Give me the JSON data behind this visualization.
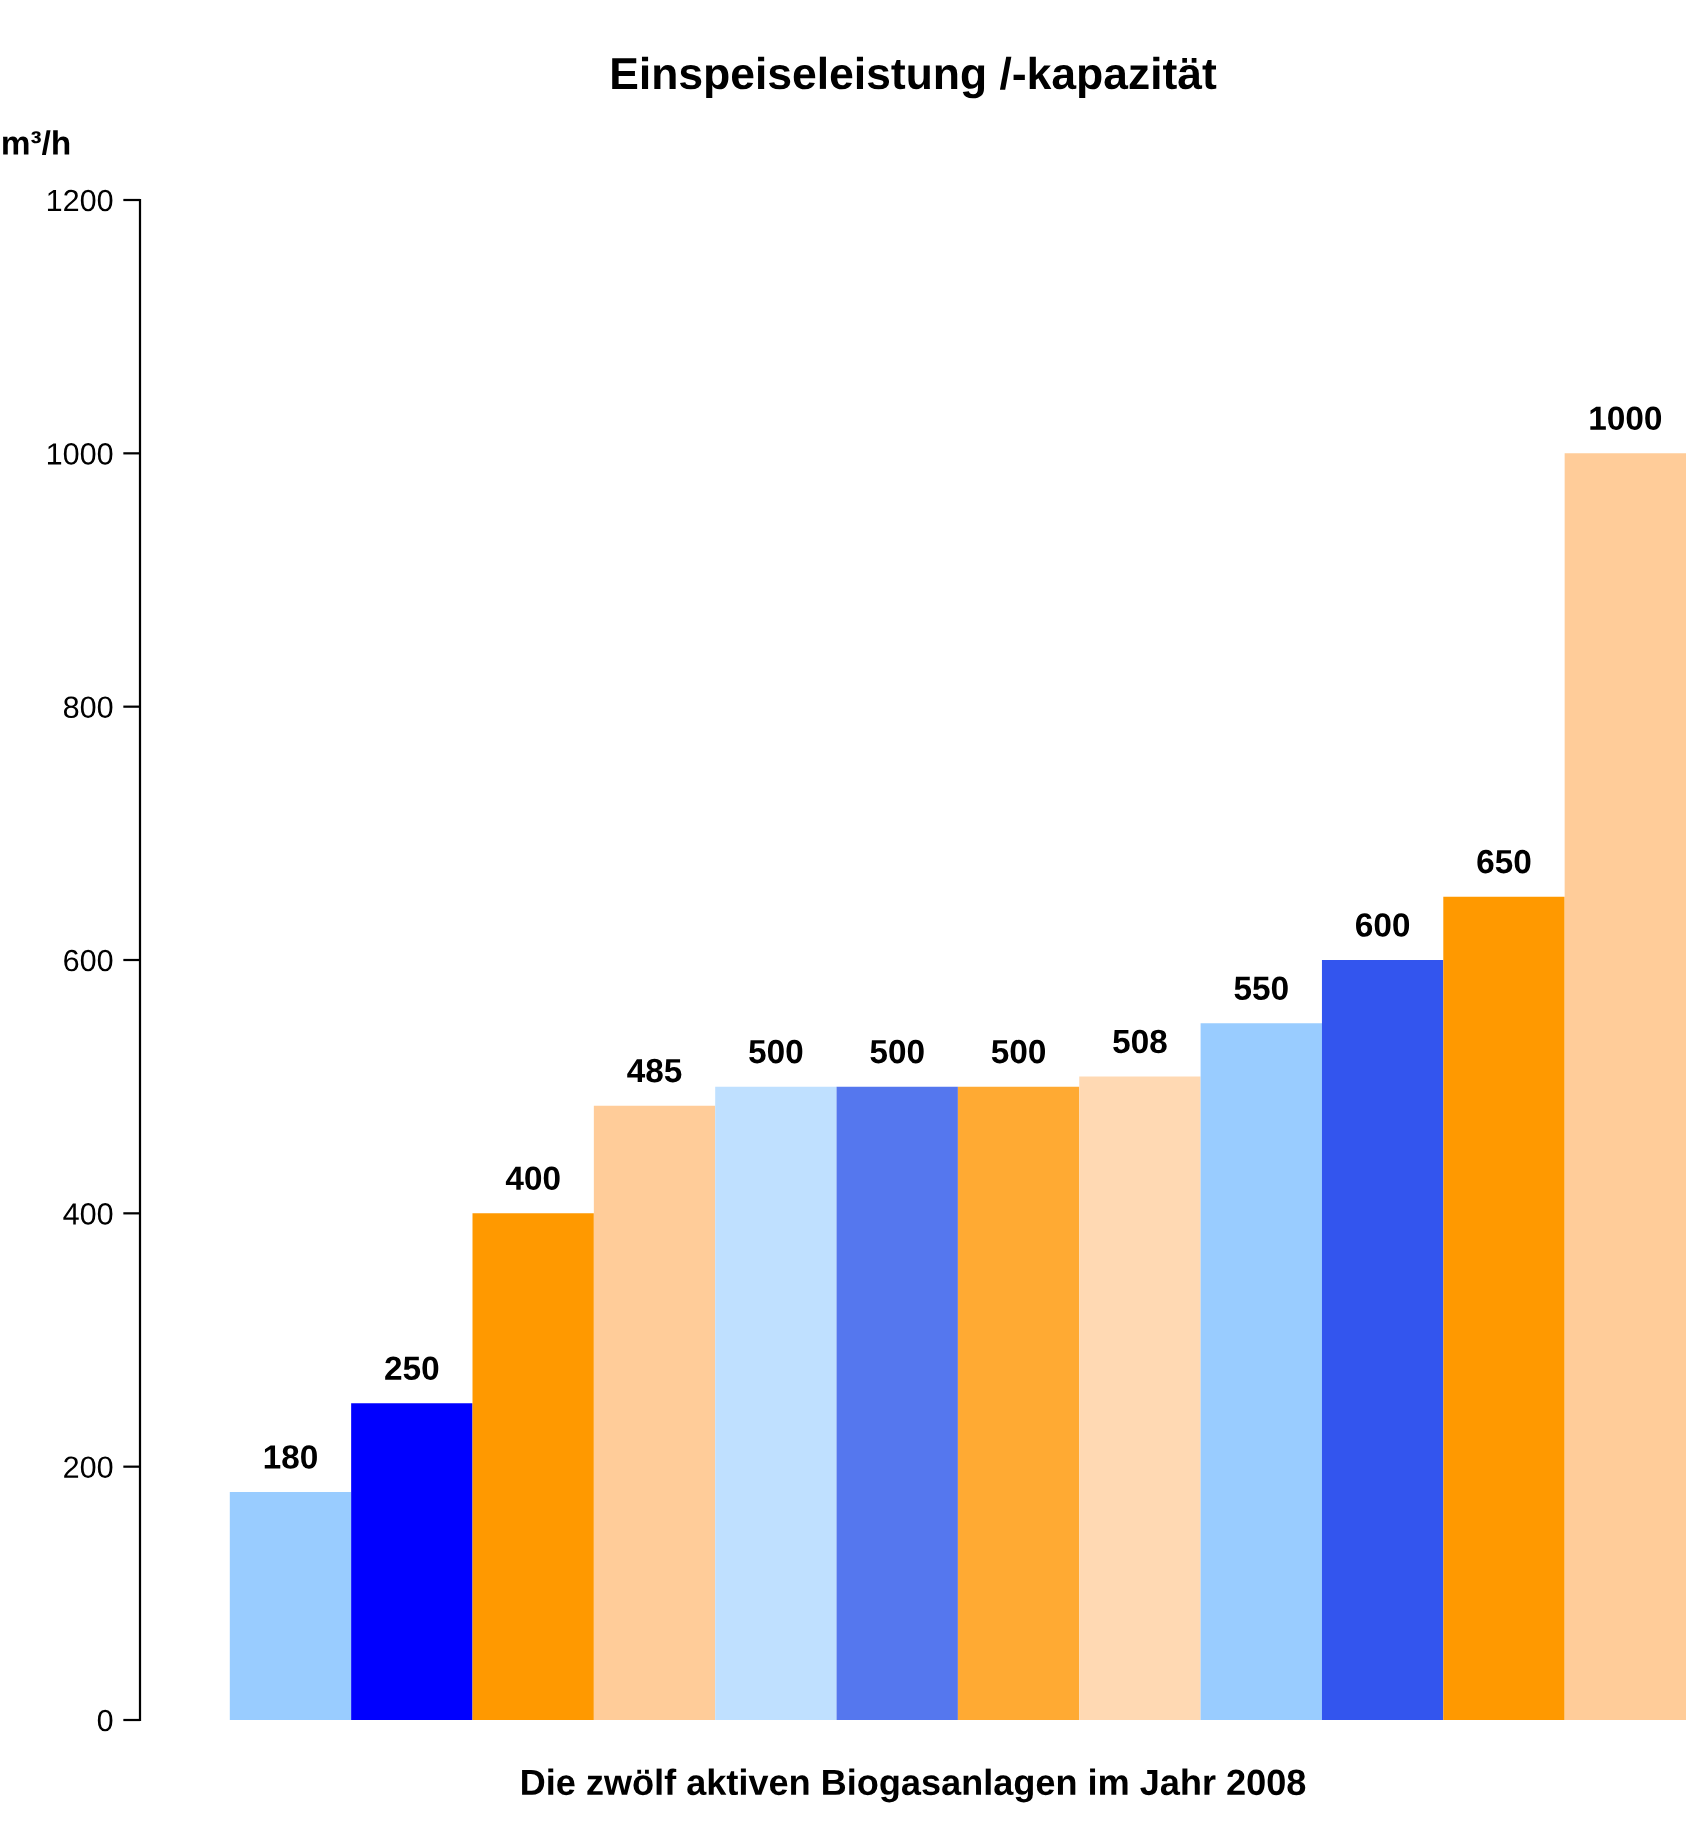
{
  "chart_data": {
    "type": "bar",
    "title": "Einspeiseleistung /-kapazität",
    "ylabel": "m³/h",
    "xlabel": "Die zwölf aktiven Biogasanlagen im Jahr 2008",
    "categories": [
      null,
      null,
      null,
      null,
      null,
      null,
      null,
      null,
      null,
      null,
      null,
      null
    ],
    "values": [
      180,
      250,
      400,
      485,
      500,
      500,
      500,
      508,
      550,
      600,
      650,
      1000
    ],
    "colors": [
      "#99ccff",
      "#0000ff",
      "#ff9900",
      "#ffcc99",
      "#bfe0ff",
      "#5577ee",
      "#ffaa33",
      "#ffd9b3",
      "#99ccff",
      "#3355ee",
      "#ff9900",
      "#ffcc99"
    ],
    "ylim": [
      0,
      1200
    ],
    "yticks": [
      0,
      200,
      400,
      600,
      800,
      1000,
      1200
    ],
    "grid": false,
    "legend": false,
    "data_labels": true
  }
}
